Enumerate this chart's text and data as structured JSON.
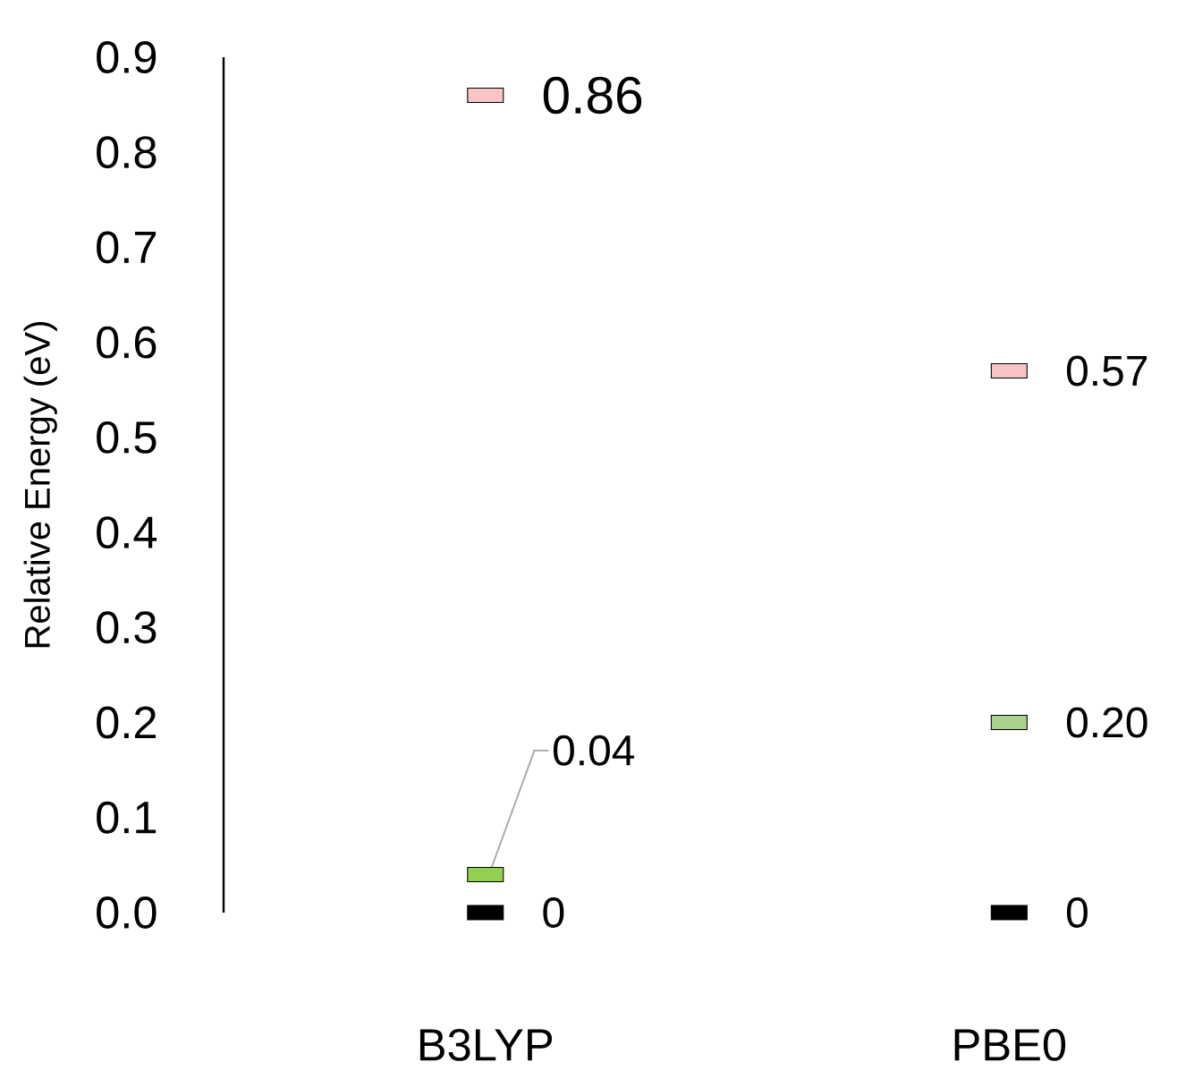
{
  "chart_data": {
    "type": "scatter",
    "ylabel": "Relative Energy (eV)",
    "categories": [
      "B3LYP",
      "PBE0"
    ],
    "series": [
      {
        "color": "#000000",
        "values": [
          0,
          0
        ],
        "value_labels": [
          "0",
          "0"
        ]
      },
      {
        "color": "#92d050",
        "colors": [
          "#92d050",
          "#a9d18e"
        ],
        "values": [
          0.04,
          0.2
        ],
        "value_labels": [
          "0.04",
          "0.20"
        ]
      },
      {
        "color": "#f8c4c4",
        "values": [
          0.86,
          0.57
        ],
        "value_labels": [
          "0.86",
          "0.57"
        ]
      }
    ],
    "ylim": [
      0,
      0.9
    ],
    "yticks": [
      {
        "value": 0,
        "label": "0.0"
      },
      0.1,
      0.2,
      0.3,
      0.4,
      0.5,
      0.6,
      0.7,
      0.8,
      0.9
    ],
    "grid": false
  }
}
